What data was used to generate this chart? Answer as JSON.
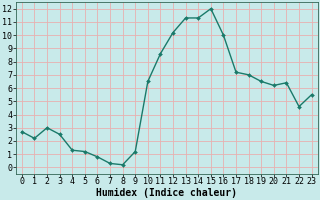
{
  "x": [
    0,
    1,
    2,
    3,
    4,
    5,
    6,
    7,
    8,
    9,
    10,
    11,
    12,
    13,
    14,
    15,
    16,
    17,
    18,
    19,
    20,
    21,
    22,
    23
  ],
  "y": [
    2.7,
    2.2,
    3.0,
    2.5,
    1.3,
    1.2,
    0.8,
    0.3,
    0.2,
    1.2,
    6.5,
    8.6,
    10.2,
    11.3,
    11.3,
    12.0,
    10.0,
    7.2,
    7.0,
    6.5,
    6.2,
    6.4,
    4.6,
    5.5
  ],
  "line_color": "#1a7a6a",
  "marker": "D",
  "marker_size": 2.0,
  "bg_color": "#c8eaea",
  "grid_color": "#e8b0b0",
  "xlabel": "Humidex (Indice chaleur)",
  "xlabel_fontsize": 7,
  "xlim": [
    -0.5,
    23.5
  ],
  "ylim": [
    -0.5,
    12.5
  ],
  "xtick_labels": [
    "0",
    "1",
    "2",
    "3",
    "4",
    "5",
    "6",
    "7",
    "8",
    "9",
    "10",
    "11",
    "12",
    "13",
    "14",
    "15",
    "16",
    "17",
    "18",
    "19",
    "20",
    "21",
    "22",
    "23"
  ],
  "ytick_values": [
    0,
    1,
    2,
    3,
    4,
    5,
    6,
    7,
    8,
    9,
    10,
    11,
    12
  ],
  "tick_fontsize": 6,
  "line_width": 1.0,
  "fig_width": 3.2,
  "fig_height": 2.0,
  "dpi": 100
}
